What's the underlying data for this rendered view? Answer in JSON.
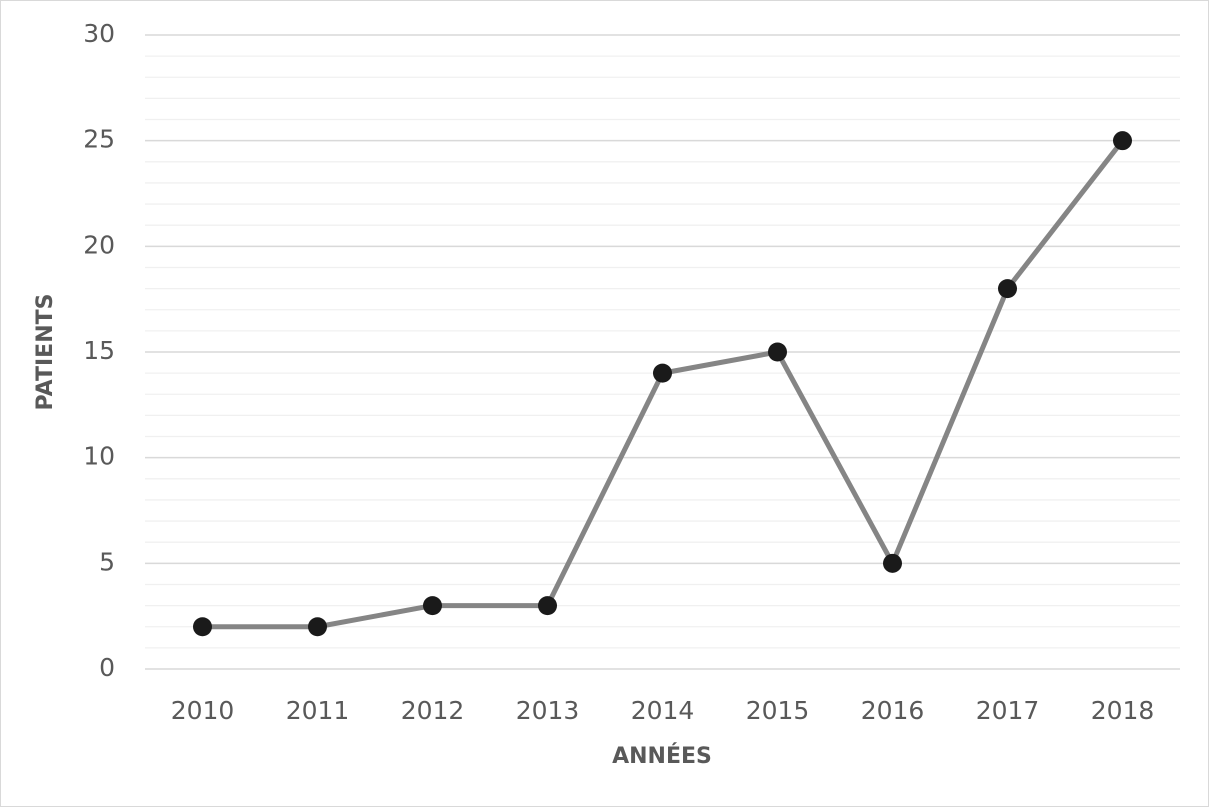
{
  "chart_data": {
    "type": "line",
    "x_label": "ANNÉES",
    "y_label": "PATIENTS",
    "categories": [
      "2010",
      "2011",
      "2012",
      "2013",
      "2014",
      "2015",
      "2016",
      "2017",
      "2018"
    ],
    "values": [
      2,
      2,
      3,
      3,
      14,
      15,
      5,
      18,
      25
    ],
    "color": "#858585",
    "marker_color": "#1a1a1a",
    "ylim": [
      0,
      30
    ],
    "yticks": [
      0,
      5,
      10,
      15,
      20,
      25,
      30
    ],
    "grid": true,
    "minor_grid": true
  }
}
